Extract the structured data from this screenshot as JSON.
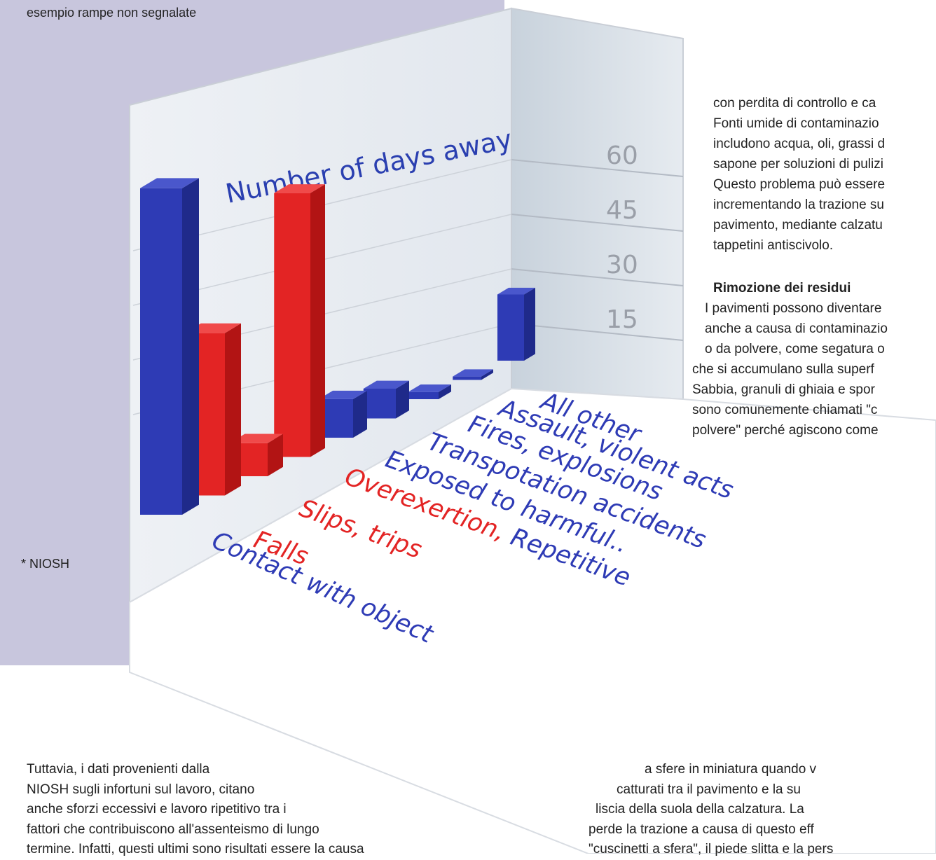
{
  "page": {
    "caption": "esempio rampe non segnalate",
    "footnote": "* NIOSH",
    "right_column": [
      {
        "kind": "text",
        "text": "con perdita di controllo e ca"
      },
      {
        "kind": "text",
        "text": "Fonti umide di contaminazio"
      },
      {
        "kind": "text",
        "text": "includono acqua, oli, grassi d"
      },
      {
        "kind": "text",
        "text": "sapone per soluzioni di pulizi"
      },
      {
        "kind": "text",
        "text": "Questo problema può essere"
      },
      {
        "kind": "text",
        "text": "incrementando la trazione su"
      },
      {
        "kind": "text",
        "text": "pavimento, mediante calzatu"
      },
      {
        "kind": "text",
        "text": "tappetini antiscivolo."
      },
      {
        "kind": "heading",
        "text": "Rimozione dei residui"
      },
      {
        "kind": "text",
        "text": "I pavimenti possono diventare"
      },
      {
        "kind": "text",
        "text": "anche a causa di contaminazio"
      },
      {
        "kind": "text",
        "text": "o da polvere, come segatura o"
      },
      {
        "kind": "text",
        "text": "che si accumulano sulla superf"
      },
      {
        "kind": "text",
        "text": "Sabbia, granuli di ghiaia e spor"
      },
      {
        "kind": "text",
        "text": "sono comunemente chiamati \"c"
      },
      {
        "kind": "text",
        "text": "polvere\" perché agiscono come"
      }
    ],
    "bottom_left": [
      "Tuttavia, i dati provenienti dalla",
      "NIOSH sugli infortuni sul lavoro, citano",
      "anche sforzi eccessivi e lavoro ripetitivo tra i",
      "fattori che contribuiscono all'assenteismo di lungo",
      "termine. Infatti, questi ultimi sono risultati essere la causa"
    ],
    "bottom_right": [
      "a sfere in miniatura quando v",
      "catturati tra il pavimento e la su",
      "liscia della suola della calzatura. La",
      "perde la trazione a causa di questo eff",
      "\"cuscinetti a sfera\", il piede slitta e la pers"
    ]
  },
  "chart_data": {
    "type": "bar",
    "style": "3d",
    "title": "Number of days away",
    "yticks": [
      15,
      30,
      45,
      60
    ],
    "ylim": [
      0,
      75
    ],
    "colors": {
      "blue": "#2e3bb5",
      "red": "#e32424"
    },
    "categories": [
      {
        "name": "Contact with object",
        "value": 74,
        "color": "blue"
      },
      {
        "name": "Falls",
        "value": 38,
        "color": "red"
      },
      {
        "name": "Slips, trips",
        "value": 8,
        "color": "red"
      },
      {
        "name": "Overexertion, Repetitive",
        "value": 66,
        "color": "red",
        "label_parts": [
          {
            "text": "Overexertion, ",
            "color": "red"
          },
          {
            "text": "Repetitive",
            "color": "blue"
          }
        ]
      },
      {
        "name": "Exposed to harmful..",
        "value": 10,
        "color": "blue"
      },
      {
        "name": "Transpotation accidents",
        "value": 8,
        "color": "blue"
      },
      {
        "name": "Fires, explosions",
        "value": 2,
        "color": "blue"
      },
      {
        "name": "Assault, violent acts",
        "value": 1,
        "color": "blue"
      },
      {
        "name": "All other",
        "value": 20,
        "color": "blue"
      }
    ]
  }
}
